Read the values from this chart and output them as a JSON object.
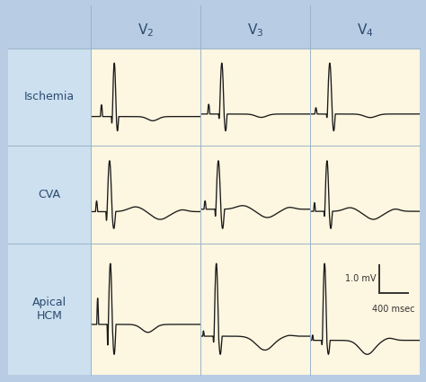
{
  "rows": [
    "Ischemia",
    "CVA",
    "Apical\nHCM"
  ],
  "cols": [
    "V$_2$",
    "V$_3$",
    "V$_4$"
  ],
  "header_bg": "#b8cce4",
  "cell_bg": "#fdf6e0",
  "row_label_bg": "#cce0f0",
  "text_color": "#2c4a6e",
  "line_color": "#1a1a1a",
  "scale_label_mv": "1.0 mV",
  "scale_label_ms": "400 msec"
}
